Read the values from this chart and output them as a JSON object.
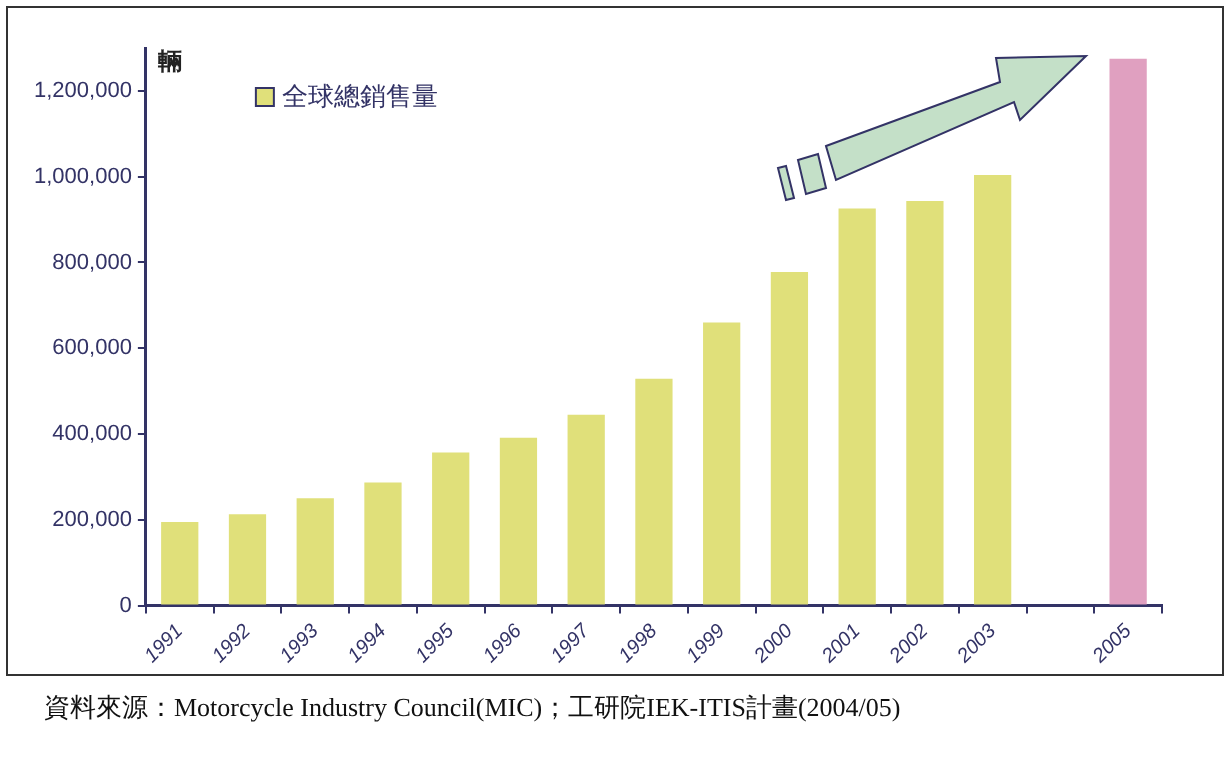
{
  "chart_data": {
    "type": "bar",
    "ylabel": "輛",
    "categories": [
      "1991",
      "1992",
      "1993",
      "1994",
      "1995",
      "1996",
      "1997",
      "1998",
      "1999",
      "2000",
      "2001",
      "2002",
      "2003",
      null,
      "2005"
    ],
    "series": [
      {
        "name": "全球總銷售量",
        "color": "#e0e07a",
        "colors": [
          "#e0e07a",
          "#e0e07a",
          "#e0e07a",
          "#e0e07a",
          "#e0e07a",
          "#e0e07a",
          "#e0e07a",
          "#e0e07a",
          "#e0e07a",
          "#e0e07a",
          "#e0e07a",
          "#e0e07a",
          "#e0e07a",
          null,
          "#e0a0c0"
        ],
        "values": [
          195000,
          213000,
          250000,
          287000,
          357000,
          391000,
          445000,
          529000,
          660000,
          778000,
          926000,
          943000,
          1004000,
          null,
          1275000
        ]
      }
    ],
    "ylim": [
      0,
      1300000
    ],
    "yticks": [
      0,
      {
        "value": 200000,
        "label": "200,000"
      },
      {
        "value": 400000,
        "label": "400,000"
      },
      {
        "value": 600000,
        "label": "600,000"
      },
      {
        "value": 800000,
        "label": "800,000"
      },
      {
        "value": 1000000,
        "label": "1,000,000"
      },
      {
        "value": 1200000,
        "label": "1,200,000"
      }
    ],
    "grid": false,
    "legend": "top left",
    "annotations": [
      "資料來源：Motorcycle Industry Council(MIC)；工研院IEK-ITIS計畫(2004/05)"
    ]
  }
}
